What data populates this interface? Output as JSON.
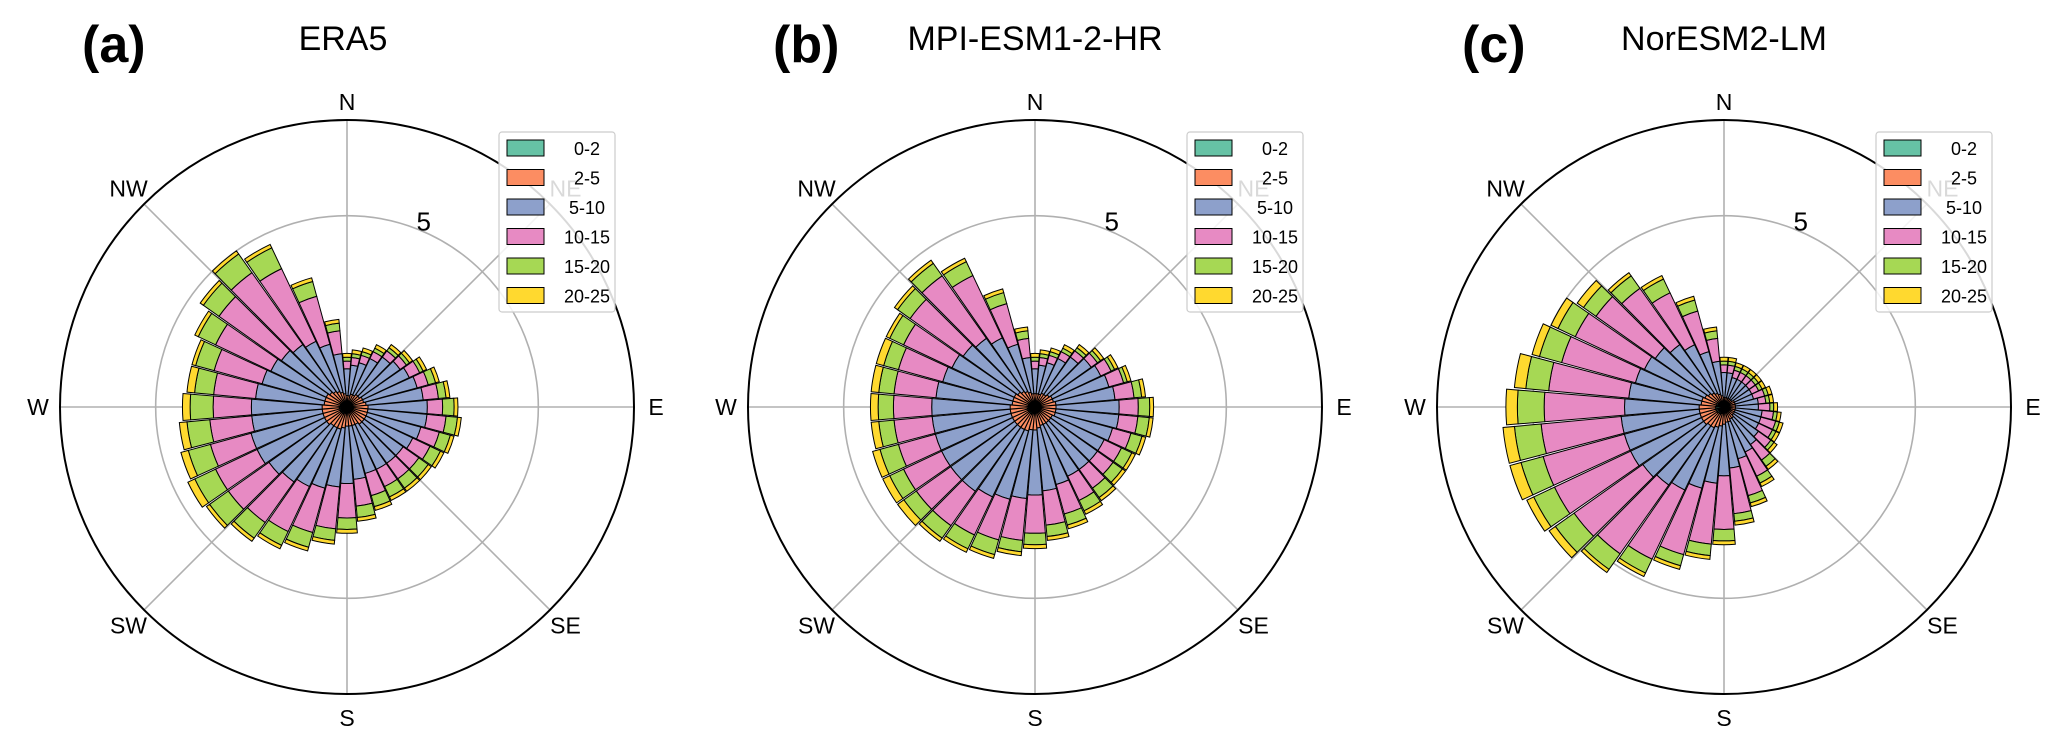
{
  "chart_data": [
    {
      "type": "windrose",
      "panel_letter": "(a)",
      "title": "ERA5",
      "directions": [
        "N",
        "NE",
        "E",
        "SE",
        "S",
        "SW",
        "W",
        "NW"
      ],
      "radial_ticks": [
        5,
        10
      ],
      "radial_tick_labels": [
        "5"
      ],
      "rmax": 7.5,
      "legend_position": "top-right",
      "bins": [
        "0-2",
        "2-5",
        "5-10",
        "10-15",
        "15-20",
        "20-25"
      ],
      "sector_directions_deg": [
        0,
        10,
        20,
        30,
        40,
        50,
        60,
        70,
        80,
        90,
        100,
        110,
        120,
        130,
        140,
        150,
        160,
        170,
        180,
        190,
        200,
        210,
        220,
        230,
        240,
        250,
        260,
        270,
        280,
        290,
        300,
        310,
        320,
        330,
        340,
        350
      ],
      "cumulative_frequency": {
        "0-2": [
          0.1,
          0.1,
          0.1,
          0.1,
          0.1,
          0.12,
          0.12,
          0.15,
          0.15,
          0.16,
          0.16,
          0.16,
          0.16,
          0.15,
          0.15,
          0.15,
          0.15,
          0.15,
          0.15,
          0.17,
          0.17,
          0.2,
          0.2,
          0.2,
          0.2,
          0.2,
          0.2,
          0.2,
          0.18,
          0.18,
          0.18,
          0.16,
          0.15,
          0.13,
          0.12,
          0.11
        ],
        "2-5": [
          0.3,
          0.3,
          0.35,
          0.35,
          0.4,
          0.4,
          0.45,
          0.45,
          0.5,
          0.55,
          0.55,
          0.55,
          0.55,
          0.55,
          0.55,
          0.5,
          0.5,
          0.5,
          0.5,
          0.55,
          0.6,
          0.6,
          0.6,
          0.65,
          0.65,
          0.65,
          0.65,
          0.65,
          0.6,
          0.6,
          0.6,
          0.55,
          0.5,
          0.45,
          0.4,
          0.35
        ],
        "5-10": [
          1.0,
          1.1,
          1.2,
          1.4,
          1.6,
          1.7,
          1.8,
          1.9,
          2.0,
          2.1,
          2.1,
          2.0,
          1.9,
          1.8,
          1.8,
          1.8,
          1.8,
          1.9,
          2.0,
          2.1,
          2.2,
          2.3,
          2.4,
          2.5,
          2.6,
          2.6,
          2.5,
          2.5,
          2.4,
          2.3,
          2.2,
          2.1,
          2.0,
          1.9,
          1.7,
          1.4
        ],
        "10-15": [
          1.2,
          1.3,
          1.4,
          1.6,
          1.8,
          1.9,
          2.1,
          2.2,
          2.4,
          2.5,
          2.6,
          2.5,
          2.4,
          2.3,
          2.3,
          2.3,
          2.4,
          2.6,
          2.9,
          3.2,
          3.4,
          3.6,
          3.7,
          3.8,
          3.8,
          3.7,
          3.6,
          3.5,
          3.5,
          3.6,
          3.8,
          4.1,
          4.3,
          4.0,
          3.0,
          2.0
        ],
        "15-20": [
          1.3,
          1.4,
          1.5,
          1.7,
          1.9,
          2.0,
          2.2,
          2.4,
          2.6,
          2.8,
          2.9,
          2.8,
          2.7,
          2.6,
          2.6,
          2.6,
          2.7,
          2.9,
          3.2,
          3.5,
          3.8,
          4.0,
          4.2,
          4.4,
          4.4,
          4.3,
          4.2,
          4.1,
          4.0,
          4.1,
          4.3,
          4.6,
          4.9,
          4.6,
          3.4,
          2.2
        ],
        "20-25": [
          1.4,
          1.5,
          1.6,
          1.8,
          2.0,
          2.1,
          2.3,
          2.5,
          2.7,
          2.9,
          3.0,
          2.9,
          2.8,
          2.7,
          2.7,
          2.7,
          2.8,
          3.0,
          3.3,
          3.6,
          3.9,
          4.1,
          4.3,
          4.5,
          4.6,
          4.5,
          4.4,
          4.3,
          4.2,
          4.2,
          4.4,
          4.7,
          5.0,
          4.7,
          3.5,
          2.3
        ]
      }
    },
    {
      "type": "windrose",
      "panel_letter": "(b)",
      "title": "MPI-ESM1-2-HR",
      "directions": [
        "N",
        "NE",
        "E",
        "SE",
        "S",
        "SW",
        "W",
        "NW"
      ],
      "radial_ticks": [
        5,
        10
      ],
      "radial_tick_labels": [
        "5"
      ],
      "rmax": 7.5,
      "legend_position": "top-right",
      "bins": [
        "0-2",
        "2-5",
        "5-10",
        "10-15",
        "15-20",
        "20-25"
      ],
      "sector_directions_deg": [
        0,
        10,
        20,
        30,
        40,
        50,
        60,
        70,
        80,
        90,
        100,
        110,
        120,
        130,
        140,
        150,
        160,
        170,
        180,
        190,
        200,
        210,
        220,
        230,
        240,
        250,
        260,
        270,
        280,
        290,
        300,
        310,
        320,
        330,
        340,
        350
      ],
      "cumulative_frequency": {
        "0-2": [
          0.1,
          0.1,
          0.1,
          0.1,
          0.12,
          0.12,
          0.15,
          0.15,
          0.16,
          0.16,
          0.16,
          0.16,
          0.15,
          0.15,
          0.15,
          0.15,
          0.15,
          0.16,
          0.17,
          0.18,
          0.2,
          0.2,
          0.2,
          0.2,
          0.2,
          0.2,
          0.2,
          0.18,
          0.18,
          0.18,
          0.17,
          0.16,
          0.15,
          0.14,
          0.12,
          0.11
        ],
        "2-5": [
          0.35,
          0.35,
          0.35,
          0.4,
          0.4,
          0.45,
          0.5,
          0.5,
          0.55,
          0.55,
          0.55,
          0.55,
          0.5,
          0.5,
          0.5,
          0.5,
          0.5,
          0.55,
          0.6,
          0.6,
          0.65,
          0.65,
          0.65,
          0.65,
          0.65,
          0.65,
          0.65,
          0.65,
          0.6,
          0.6,
          0.6,
          0.55,
          0.5,
          0.45,
          0.4,
          0.35
        ],
        "5-10": [
          1.0,
          1.1,
          1.2,
          1.4,
          1.6,
          1.8,
          1.9,
          2.0,
          2.1,
          2.2,
          2.2,
          2.1,
          2.0,
          2.0,
          2.0,
          2.0,
          2.1,
          2.2,
          2.3,
          2.4,
          2.5,
          2.6,
          2.7,
          2.7,
          2.7,
          2.7,
          2.7,
          2.7,
          2.6,
          2.5,
          2.4,
          2.3,
          2.2,
          2.0,
          1.7,
          1.3
        ],
        "10-15": [
          1.2,
          1.3,
          1.4,
          1.6,
          1.8,
          2.0,
          2.2,
          2.4,
          2.6,
          2.7,
          2.7,
          2.6,
          2.5,
          2.5,
          2.6,
          2.7,
          2.9,
          3.1,
          3.3,
          3.5,
          3.6,
          3.7,
          3.8,
          3.8,
          3.8,
          3.7,
          3.7,
          3.7,
          3.7,
          3.7,
          3.8,
          4.0,
          4.2,
          3.8,
          2.8,
          1.8
        ],
        "15-20": [
          1.3,
          1.4,
          1.5,
          1.7,
          1.9,
          2.1,
          2.3,
          2.5,
          2.8,
          3.0,
          3.0,
          2.9,
          2.8,
          2.8,
          2.9,
          3.0,
          3.2,
          3.4,
          3.6,
          3.8,
          4.0,
          4.1,
          4.2,
          4.2,
          4.2,
          4.2,
          4.1,
          4.1,
          4.1,
          4.1,
          4.2,
          4.4,
          4.6,
          4.2,
          3.1,
          2.0
        ],
        "20-25": [
          1.4,
          1.5,
          1.6,
          1.8,
          2.0,
          2.2,
          2.4,
          2.6,
          2.9,
          3.1,
          3.1,
          3.0,
          2.9,
          2.9,
          3.0,
          3.1,
          3.3,
          3.5,
          3.7,
          3.9,
          4.1,
          4.2,
          4.3,
          4.4,
          4.4,
          4.4,
          4.3,
          4.3,
          4.3,
          4.3,
          4.3,
          4.5,
          4.7,
          4.3,
          3.2,
          2.1
        ]
      }
    },
    {
      "type": "windrose",
      "panel_letter": "(c)",
      "title": "NorESM2-LM",
      "directions": [
        "N",
        "NE",
        "E",
        "SE",
        "S",
        "SW",
        "W",
        "NW"
      ],
      "radial_ticks": [
        5,
        10
      ],
      "radial_tick_labels": [
        "5"
      ],
      "rmax": 7.5,
      "legend_position": "top-right",
      "bins": [
        "0-2",
        "2-5",
        "5-10",
        "10-15",
        "15-20",
        "20-25"
      ],
      "sector_directions_deg": [
        0,
        10,
        20,
        30,
        40,
        50,
        60,
        70,
        80,
        90,
        100,
        110,
        120,
        130,
        140,
        150,
        160,
        170,
        180,
        190,
        200,
        210,
        220,
        230,
        240,
        250,
        260,
        270,
        280,
        290,
        300,
        310,
        320,
        330,
        340,
        350
      ],
      "cumulative_frequency": {
        "0-2": [
          0.1,
          0.1,
          0.1,
          0.1,
          0.1,
          0.1,
          0.1,
          0.1,
          0.1,
          0.1,
          0.1,
          0.1,
          0.1,
          0.1,
          0.1,
          0.12,
          0.12,
          0.14,
          0.15,
          0.17,
          0.18,
          0.2,
          0.2,
          0.22,
          0.22,
          0.22,
          0.22,
          0.22,
          0.2,
          0.2,
          0.18,
          0.16,
          0.15,
          0.14,
          0.12,
          0.11
        ],
        "2-5": [
          0.25,
          0.25,
          0.25,
          0.25,
          0.25,
          0.25,
          0.3,
          0.3,
          0.3,
          0.3,
          0.3,
          0.3,
          0.3,
          0.3,
          0.35,
          0.35,
          0.4,
          0.4,
          0.45,
          0.5,
          0.55,
          0.6,
          0.6,
          0.65,
          0.65,
          0.65,
          0.65,
          0.65,
          0.6,
          0.6,
          0.55,
          0.5,
          0.45,
          0.4,
          0.35,
          0.3
        ],
        "5-10": [
          0.9,
          0.9,
          0.8,
          0.8,
          0.8,
          0.8,
          0.8,
          0.8,
          0.9,
          0.9,
          1.0,
          1.0,
          1.0,
          1.1,
          1.2,
          1.3,
          1.4,
          1.6,
          1.8,
          2.0,
          2.2,
          2.4,
          2.5,
          2.6,
          2.7,
          2.7,
          2.7,
          2.6,
          2.5,
          2.4,
          2.3,
          2.2,
          2.0,
          1.8,
          1.5,
          1.2
        ],
        "10-15": [
          1.1,
          1.1,
          1.0,
          1.0,
          1.0,
          1.0,
          1.0,
          1.1,
          1.1,
          1.2,
          1.3,
          1.4,
          1.4,
          1.5,
          1.7,
          2.0,
          2.4,
          2.8,
          3.2,
          3.6,
          4.0,
          4.4,
          4.7,
          4.8,
          4.9,
          4.9,
          4.8,
          4.7,
          4.6,
          4.4,
          4.3,
          4.1,
          3.8,
          3.3,
          2.6,
          1.8
        ],
        "15-20": [
          1.2,
          1.2,
          1.1,
          1.1,
          1.1,
          1.1,
          1.1,
          1.2,
          1.2,
          1.3,
          1.4,
          1.5,
          1.5,
          1.6,
          1.9,
          2.2,
          2.6,
          3.0,
          3.5,
          3.9,
          4.3,
          4.8,
          5.2,
          5.4,
          5.5,
          5.5,
          5.5,
          5.4,
          5.2,
          5.0,
          4.8,
          4.5,
          4.2,
          3.7,
          2.9,
          2.0
        ],
        "20-25": [
          1.3,
          1.3,
          1.2,
          1.2,
          1.2,
          1.2,
          1.2,
          1.3,
          1.3,
          1.4,
          1.5,
          1.6,
          1.6,
          1.7,
          2.0,
          2.3,
          2.7,
          3.1,
          3.6,
          4.0,
          4.4,
          4.9,
          5.3,
          5.6,
          5.7,
          5.8,
          5.8,
          5.7,
          5.5,
          5.2,
          5.0,
          4.7,
          4.3,
          3.8,
          3.0,
          2.1
        ]
      }
    }
  ],
  "colors": {
    "0-2": "#66c2a5",
    "2-5": "#fc8d62",
    "5-10": "#8da0cb",
    "10-15": "#e78ac3",
    "15-20": "#a6d854",
    "20-25": "#ffd92f",
    "grid": "#b0b0b0",
    "edge": "#000000"
  }
}
